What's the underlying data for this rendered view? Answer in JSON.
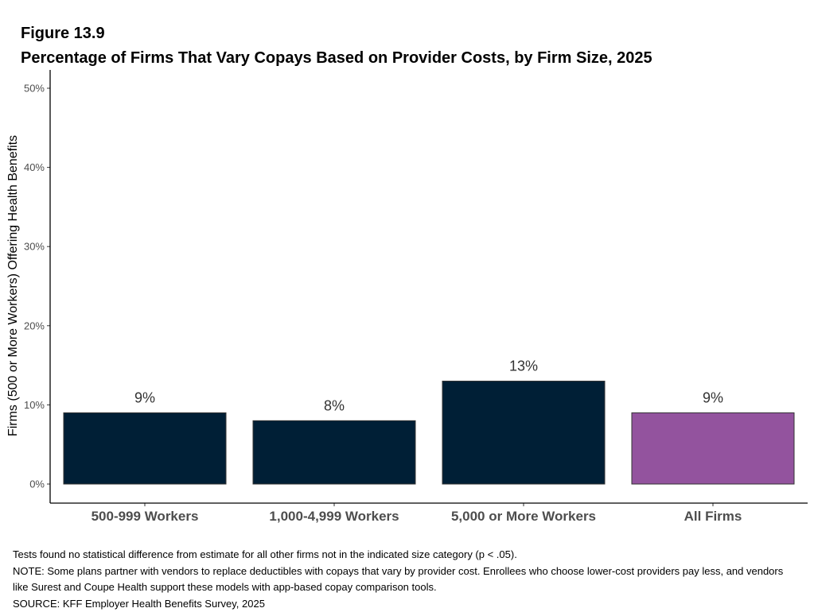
{
  "figure": {
    "label": "Figure 13.9",
    "title": "Percentage of Firms That Vary Copays Based on Provider Costs, by Firm Size, 2025"
  },
  "chart_data": {
    "type": "bar",
    "categories": [
      "500-999 Workers",
      "1,000-4,999 Workers",
      "5,000 or More Workers",
      "All Firms"
    ],
    "values": [
      9,
      8,
      13,
      9
    ],
    "value_labels": [
      "9%",
      "8%",
      "13%",
      "9%"
    ],
    "bar_colors": [
      "#001f36",
      "#001f36",
      "#001f36",
      "#93539e"
    ],
    "xlabel": "",
    "ylabel": "Firms (500 or More Workers) Offering Health Benefits",
    "ylim": [
      0,
      52.5
    ],
    "yticks": [
      0,
      10,
      20,
      30,
      40,
      50
    ],
    "ytick_labels": [
      "0%",
      "10%",
      "20%",
      "30%",
      "40%",
      "50%"
    ],
    "grid": false,
    "legend": "none"
  },
  "footnotes": [
    "Tests found no statistical difference from estimate for all other firms not in the indicated size category (p < .05).",
    "NOTE: Some plans partner with vendors to replace deductibles with copays that vary by provider cost. Enrollees who choose lower-cost providers pay less, and vendors like Surest and Coupe Health support these models with app-based copay comparison tools.",
    "SOURCE: KFF Employer Health Benefits Survey, 2025"
  ]
}
